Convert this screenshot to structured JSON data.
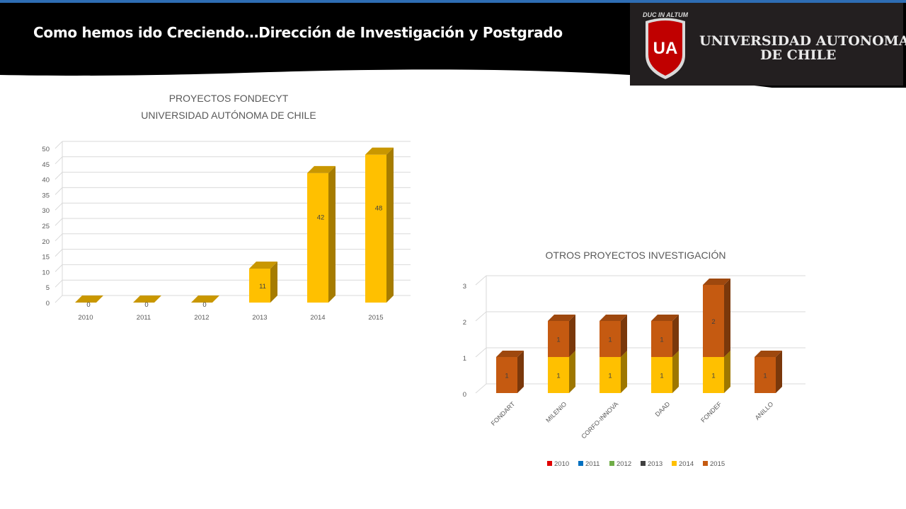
{
  "slide": {
    "title": "Como hemos ido Creciendo…Dirección de Investigación y Postgrado"
  },
  "logo": {
    "motto": "DUC IN ALTUM",
    "shield_text": "UA",
    "name_line1": "UNIVERSIDAD AUTONOMA",
    "name_line2": "DE CHILE"
  },
  "chart_data": [
    {
      "type": "bar",
      "title": "PROYECTOS FONDECYT",
      "subtitle": "UNIVERSIDAD AUTÓNOMA DE CHILE",
      "categories": [
        "2010",
        "2011",
        "2012",
        "2013",
        "2014",
        "2015"
      ],
      "values": [
        0,
        0,
        0,
        11,
        42,
        48
      ],
      "data_labels": [
        "0",
        "0",
        "0",
        "11",
        "42",
        "48"
      ],
      "ylim": [
        0,
        50
      ],
      "yticks": [
        0,
        5,
        10,
        15,
        20,
        25,
        30,
        35,
        40,
        45,
        50
      ],
      "grid": true,
      "style": "3d-column",
      "colors": {
        "bar": "#ffc000",
        "bar_side": "#a67c00",
        "bar_top": "#c99700"
      }
    },
    {
      "type": "bar",
      "stacked": true,
      "title": "OTROS PROYECTOS INVESTIGACIÓN",
      "categories": [
        "FONDART",
        "MILENIO",
        "CORFO-INNOVA",
        "DAAD",
        "FONDEF",
        "ANILLO"
      ],
      "series": [
        {
          "name": "2010",
          "color": "#e00000",
          "values": [
            0,
            0,
            0,
            0,
            0,
            0
          ]
        },
        {
          "name": "2011",
          "color": "#0070c0",
          "values": [
            0,
            0,
            0,
            0,
            0,
            0
          ]
        },
        {
          "name": "2012",
          "color": "#70ad47",
          "values": [
            0,
            0,
            0,
            0,
            0,
            0
          ]
        },
        {
          "name": "2013",
          "color": "#404040",
          "values": [
            0,
            0,
            0,
            0,
            0,
            0
          ]
        },
        {
          "name": "2014",
          "color": "#ffc000",
          "values": [
            0,
            1,
            1,
            1,
            1,
            0
          ]
        },
        {
          "name": "2015",
          "color": "#c55a11",
          "values": [
            1,
            1,
            1,
            1,
            2,
            1
          ]
        }
      ],
      "ylim": [
        0,
        3
      ],
      "yticks": [
        0,
        1,
        2,
        3
      ],
      "grid": true,
      "legend": "bottom",
      "style": "3d-column"
    }
  ]
}
